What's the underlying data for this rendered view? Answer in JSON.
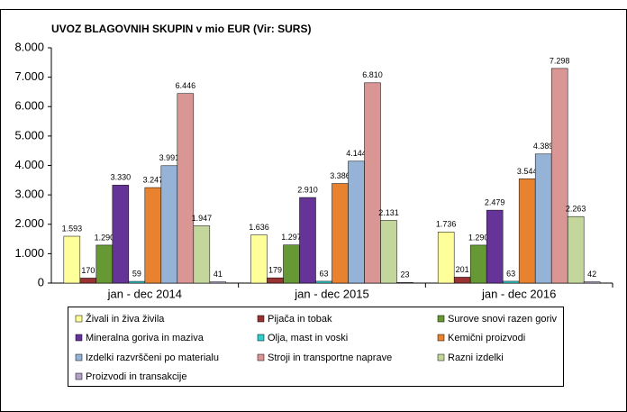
{
  "chart_data": {
    "type": "bar",
    "title": "UVOZ BLAGOVNIH SKUPIN v mio EUR (Vir: SURS)",
    "categories": [
      "jan - dec 2014",
      "jan - dec 2015",
      "jan - dec 2016"
    ],
    "ylim": [
      0,
      8000
    ],
    "yticks": [
      0,
      {
        "value": 1000,
        "label": "1.000"
      },
      {
        "value": 2000,
        "label": "2.000"
      },
      {
        "value": 3000,
        "label": "3.000"
      },
      {
        "value": 4000,
        "label": "4.000"
      },
      {
        "value": 5000,
        "label": "5.000"
      },
      {
        "value": 6000,
        "label": "6.000"
      },
      {
        "value": 7000,
        "label": "7.000"
      },
      {
        "value": 8000,
        "label": "8.000"
      }
    ],
    "grid": false,
    "series": [
      {
        "name": "Živali in živa živila",
        "color": "#ffff99",
        "values": [
          1593,
          1636,
          1736
        ],
        "value_labels": [
          "1.593",
          "1.636",
          "1.736"
        ]
      },
      {
        "name": "Pijača in tobak",
        "color": "#993333",
        "values": [
          170,
          179,
          201
        ],
        "value_labels": [
          "170",
          "179",
          "201"
        ]
      },
      {
        "name": "Surove snovi razen goriv",
        "color": "#669933",
        "values": [
          1290,
          1297,
          1290
        ],
        "value_labels": [
          "1.290",
          "1.297",
          "1.290"
        ]
      },
      {
        "name": "Mineralna goriva in maziva",
        "color": "#663399",
        "values": [
          3330,
          2910,
          2479
        ],
        "value_labels": [
          "3.330",
          "2.910",
          "2.479"
        ]
      },
      {
        "name": "Olja, mast in voski",
        "color": "#33cccc",
        "values": [
          59,
          63,
          63
        ],
        "value_labels": [
          "59",
          "63",
          "63"
        ]
      },
      {
        "name": "Kemični proizvodi",
        "color": "#e8822f",
        "values": [
          3247,
          3386,
          3544
        ],
        "value_labels": [
          "3.247",
          "3.386",
          "3.544"
        ]
      },
      {
        "name": "Izdelki razvrščeni po materialu",
        "color": "#95b3d7",
        "values": [
          3991,
          4144,
          4389
        ],
        "value_labels": [
          "3.991",
          "4.144",
          "4.389"
        ]
      },
      {
        "name": "Stroji in transportne naprave",
        "color": "#d99694",
        "values": [
          6446,
          6810,
          7298
        ],
        "value_labels": [
          "6.446",
          "6.810",
          "7.298"
        ]
      },
      {
        "name": "Razni izdelki",
        "color": "#c3d69b",
        "values": [
          1947,
          2131,
          2263
        ],
        "value_labels": [
          "1.947",
          "2.131",
          "2.263"
        ]
      },
      {
        "name": "Proizvodi in transakcije",
        "color": "#b3a2c7",
        "values": [
          41,
          23,
          42
        ],
        "value_labels": [
          "41",
          "23",
          "42"
        ]
      }
    ]
  }
}
